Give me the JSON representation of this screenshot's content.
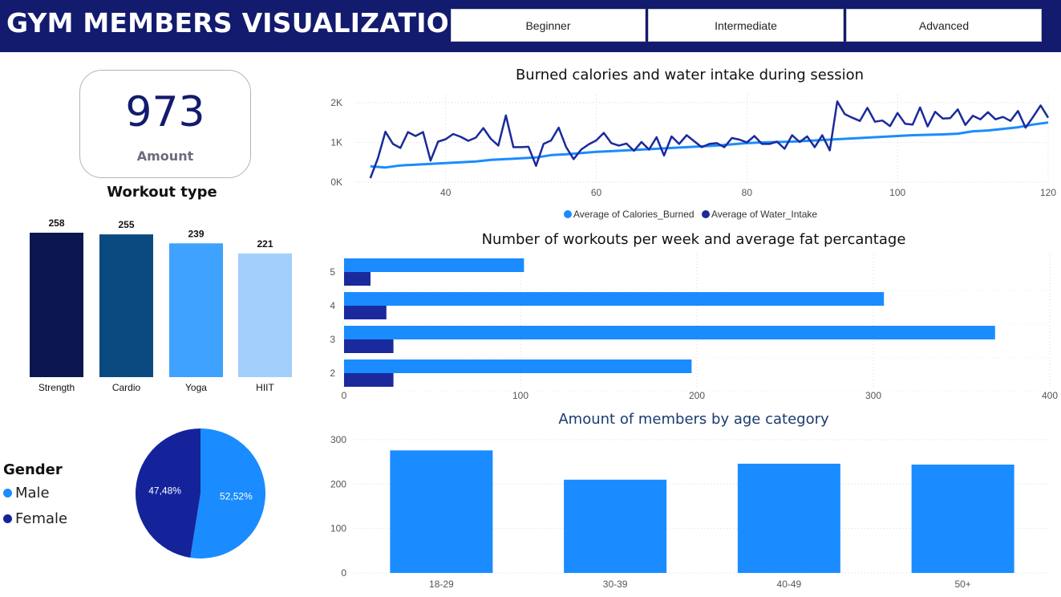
{
  "header": {
    "title": "GYM MEMBERS VISUALIZATION",
    "levels": [
      "Beginner",
      "Intermediate",
      "Advanced"
    ]
  },
  "kpi": {
    "value": "973",
    "label": "Amount"
  },
  "colors": {
    "header_bg": "#121b6e",
    "calories": "#1a8cff",
    "water": "#1a2a9c",
    "strength": "#0c1650",
    "cardio": "#0b4a80",
    "yoga": "#3fa2ff",
    "hiit": "#a2cffc"
  },
  "gender": {
    "title": "Gender",
    "legend": [
      {
        "label": "Male",
        "color": "#1a8cff"
      },
      {
        "label": "Female",
        "color": "#15239b"
      }
    ]
  },
  "chart_data": [
    {
      "type": "bar",
      "title": "Workout type",
      "categories": [
        "Strength",
        "Cardio",
        "Yoga",
        "HIIT"
      ],
      "values": [
        258,
        255,
        239,
        221
      ],
      "data_labels": [
        "258",
        "255",
        "239",
        "221"
      ],
      "colors": [
        "#0c1650",
        "#0b4a80",
        "#3fa2ff",
        "#a2cffc"
      ]
    },
    {
      "type": "pie",
      "title": "",
      "series": [
        {
          "name": "Male",
          "value": 52.52,
          "label": "52,52%",
          "color": "#1a8cff"
        },
        {
          "name": "Female",
          "value": 47.48,
          "label": "47,48%",
          "color": "#15239b"
        }
      ]
    },
    {
      "type": "line",
      "title": "Burned calories and water intake during session",
      "xlim": [
        28,
        120
      ],
      "ylim": [
        0,
        2200
      ],
      "x_ticks": [
        "40",
        "60",
        "80",
        "100",
        "120"
      ],
      "x_tick_values": [
        40,
        60,
        80,
        100,
        120
      ],
      "y_ticks": [
        "0K",
        "1K",
        "2K"
      ],
      "y_tick_values": [
        0,
        1000,
        2000
      ],
      "legend_position": "bottom",
      "series": [
        {
          "name": "Average of Calories_Burned",
          "color": "#1a8cff",
          "x": [
            30,
            32,
            34,
            36,
            38,
            40,
            42,
            44,
            46,
            48,
            50,
            52,
            54,
            56,
            58,
            60,
            62,
            64,
            66,
            68,
            70,
            72,
            74,
            76,
            78,
            80,
            82,
            84,
            86,
            88,
            90,
            92,
            94,
            96,
            98,
            100,
            102,
            104,
            106,
            108,
            110,
            112,
            114,
            116,
            118,
            120
          ],
          "y": [
            400,
            370,
            420,
            440,
            460,
            480,
            500,
            520,
            560,
            580,
            600,
            620,
            680,
            700,
            730,
            760,
            780,
            800,
            820,
            840,
            860,
            880,
            900,
            920,
            950,
            980,
            1000,
            1010,
            1020,
            1040,
            1060,
            1080,
            1100,
            1120,
            1140,
            1160,
            1180,
            1190,
            1200,
            1220,
            1280,
            1300,
            1340,
            1380,
            1450,
            1500
          ]
        },
        {
          "name": "Average of Water_Intake",
          "color": "#1a2a9c",
          "x": [
            30,
            31,
            32,
            33,
            34,
            35,
            36,
            37,
            38,
            39,
            40,
            41,
            42,
            43,
            44,
            45,
            46,
            47,
            48,
            49,
            50,
            51,
            52,
            53,
            54,
            55,
            56,
            57,
            58,
            59,
            60,
            61,
            62,
            63,
            64,
            65,
            66,
            67,
            68,
            69,
            70,
            71,
            72,
            73,
            74,
            75,
            76,
            77,
            78,
            79,
            80,
            81,
            82,
            83,
            84,
            85,
            86,
            87,
            88,
            89,
            90,
            91,
            92,
            93,
            94,
            95,
            96,
            97,
            98,
            99,
            100,
            101,
            102,
            103,
            104,
            105,
            106,
            107,
            108,
            109,
            110,
            111,
            112,
            113,
            114,
            115,
            116,
            117,
            118,
            119,
            120
          ],
          "y": [
            100,
            600,
            1270,
            960,
            860,
            1260,
            1160,
            1260,
            540,
            1020,
            1080,
            1210,
            1140,
            1040,
            1120,
            1360,
            1090,
            920,
            1680,
            880,
            880,
            890,
            410,
            960,
            1050,
            1370,
            880,
            580,
            820,
            950,
            1050,
            1240,
            980,
            920,
            970,
            790,
            1010,
            820,
            1130,
            670,
            1150,
            960,
            1180,
            1030,
            880,
            960,
            980,
            880,
            1110,
            1070,
            1000,
            1160,
            960,
            960,
            1020,
            840,
            1180,
            1010,
            1150,
            880,
            1180,
            800,
            2030,
            1710,
            1620,
            1540,
            1870,
            1520,
            1550,
            1410,
            1740,
            1470,
            1450,
            1880,
            1400,
            1770,
            1600,
            1610,
            1830,
            1440,
            1670,
            1580,
            1760,
            1580,
            1640,
            1540,
            1790,
            1370,
            1640,
            1930,
            1620
          ]
        }
      ]
    },
    {
      "type": "bar",
      "orientation": "horizontal",
      "title": "Number of workouts per week and average fat percantage",
      "categories": [
        "5",
        "4",
        "3",
        "2"
      ],
      "xlim": [
        0,
        400
      ],
      "x_ticks": [
        "0",
        "100",
        "200",
        "300",
        "400"
      ],
      "x_tick_values": [
        0,
        100,
        200,
        300,
        400
      ],
      "series": [
        {
          "name": "",
          "color": "#1a8cff",
          "values": [
            102,
            306,
            369,
            197
          ]
        },
        {
          "name": "",
          "color": "#1a2a9c",
          "values": [
            15,
            24,
            28,
            28
          ]
        }
      ]
    },
    {
      "type": "bar",
      "title": "Amount of members by age category",
      "categories": [
        "18-29",
        "30-39",
        "40-49",
        "50+"
      ],
      "values": [
        276,
        210,
        246,
        244
      ],
      "ylim": [
        0,
        300
      ],
      "y_ticks": [
        "0",
        "100",
        "200",
        "300"
      ],
      "y_tick_values": [
        0,
        100,
        200,
        300
      ],
      "color": "#1a8cff"
    }
  ]
}
